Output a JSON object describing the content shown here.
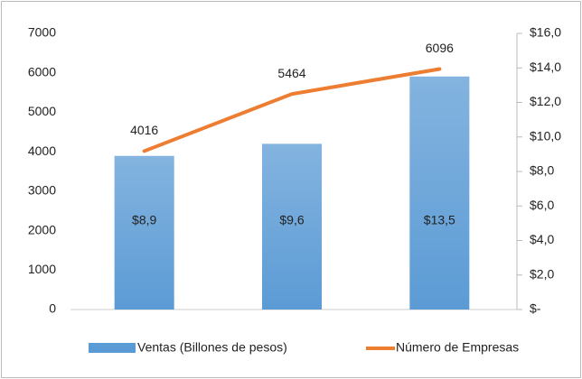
{
  "chart_data": {
    "type": "bar-line",
    "categories": [
      null,
      null,
      null
    ],
    "series": [
      {
        "name": "Ventas (Billones de pesos)",
        "type": "bar",
        "axis": "y2",
        "color": "#5b9bd5",
        "values": [
          8.9,
          9.6,
          13.5
        ],
        "value_labels": [
          "$8,9",
          "$9,6",
          "$13,5"
        ]
      },
      {
        "name": "Número de Empresas",
        "type": "line",
        "axis": "y",
        "color": "#ed7d31",
        "values": [
          4016,
          5464,
          6096
        ]
      }
    ],
    "ylim": [
      0,
      7000
    ],
    "yticks": [
      0,
      1000,
      2000,
      3000,
      4000,
      5000,
      6000,
      7000
    ],
    "y2lim": [
      0,
      16
    ],
    "y2ticks": [
      {
        "value": 0,
        "label": "$-"
      },
      {
        "value": 2,
        "label": "$2,0"
      },
      {
        "value": 4,
        "label": "$4,0"
      },
      {
        "value": 6,
        "label": "$6,0"
      },
      {
        "value": 8,
        "label": "$8,0"
      },
      {
        "value": 10,
        "label": "$10,0"
      },
      {
        "value": 12,
        "label": "$12,0"
      },
      {
        "value": 14,
        "label": "$14,0"
      },
      {
        "value": 16,
        "label": "$16,0"
      }
    ],
    "legend": "bottom"
  }
}
